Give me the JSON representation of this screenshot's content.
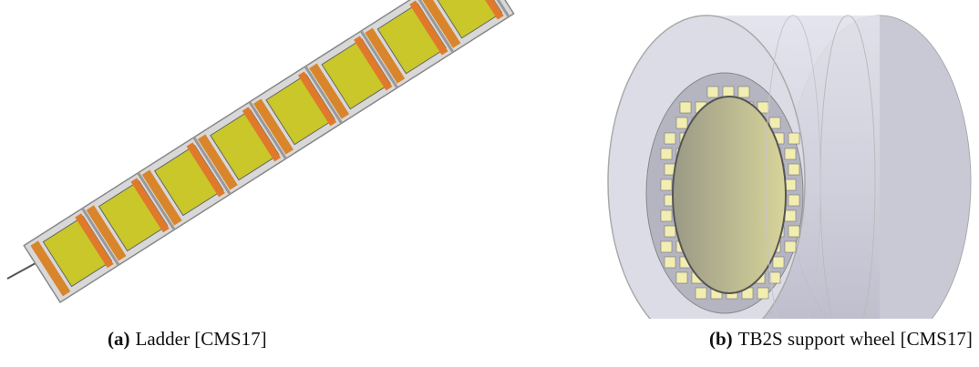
{
  "figures": [
    {
      "label": "(a)",
      "caption": "Ladder [CMS17]"
    },
    {
      "label": "(b)",
      "caption": "TB2S support wheel [CMS17]"
    }
  ]
}
